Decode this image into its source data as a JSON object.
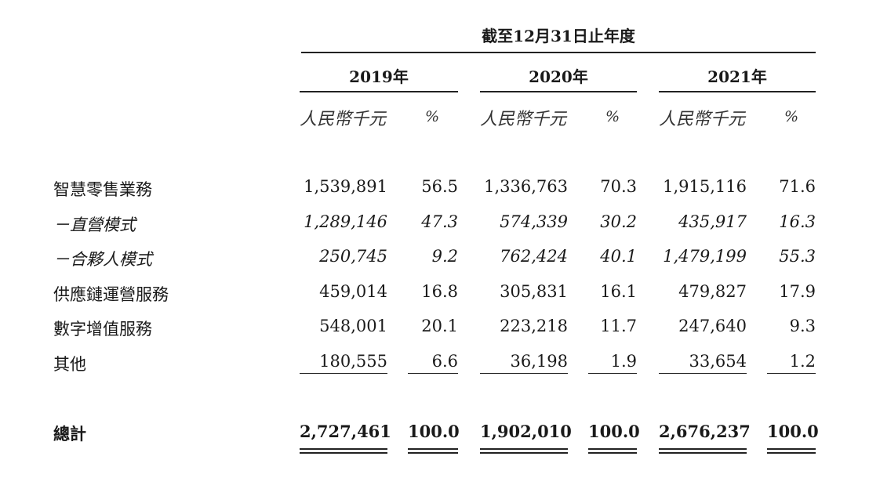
{
  "header": {
    "period": "截至12月31日止年度",
    "years": [
      "2019年",
      "2020年",
      "2021年"
    ],
    "unit_label": "人民幣千元",
    "pct_label": "%"
  },
  "rows": [
    {
      "label": "智慧零售業務",
      "values": [
        "1,539,891",
        "56.5",
        "1,336,763",
        "70.3",
        "1,915,116",
        "71.6"
      ],
      "style": "normal"
    },
    {
      "label": "－直營模式",
      "values": [
        "1,289,146",
        "47.3",
        "574,339",
        "30.2",
        "435,917",
        "16.3"
      ],
      "style": "italic"
    },
    {
      "label": "－合夥人模式",
      "values": [
        "250,745",
        "9.2",
        "762,424",
        "40.1",
        "1,479,199",
        "55.3"
      ],
      "style": "italic"
    },
    {
      "label": "供應鏈運營服務",
      "values": [
        "459,014",
        "16.8",
        "305,831",
        "16.1",
        "479,827",
        "17.9"
      ],
      "style": "normal"
    },
    {
      "label": "數字增值服務",
      "values": [
        "548,001",
        "20.1",
        "223,218",
        "11.7",
        "247,640",
        "9.3"
      ],
      "style": "normal"
    },
    {
      "label": "其他",
      "values": [
        "180,555",
        "6.6",
        "36,198",
        "1.9",
        "33,654",
        "1.2"
      ],
      "style": "normal"
    }
  ],
  "total": {
    "label": "總計",
    "values": [
      "2,727,461",
      "100.0",
      "1,902,010",
      "100.0",
      "2,676,237",
      "100.0"
    ]
  }
}
